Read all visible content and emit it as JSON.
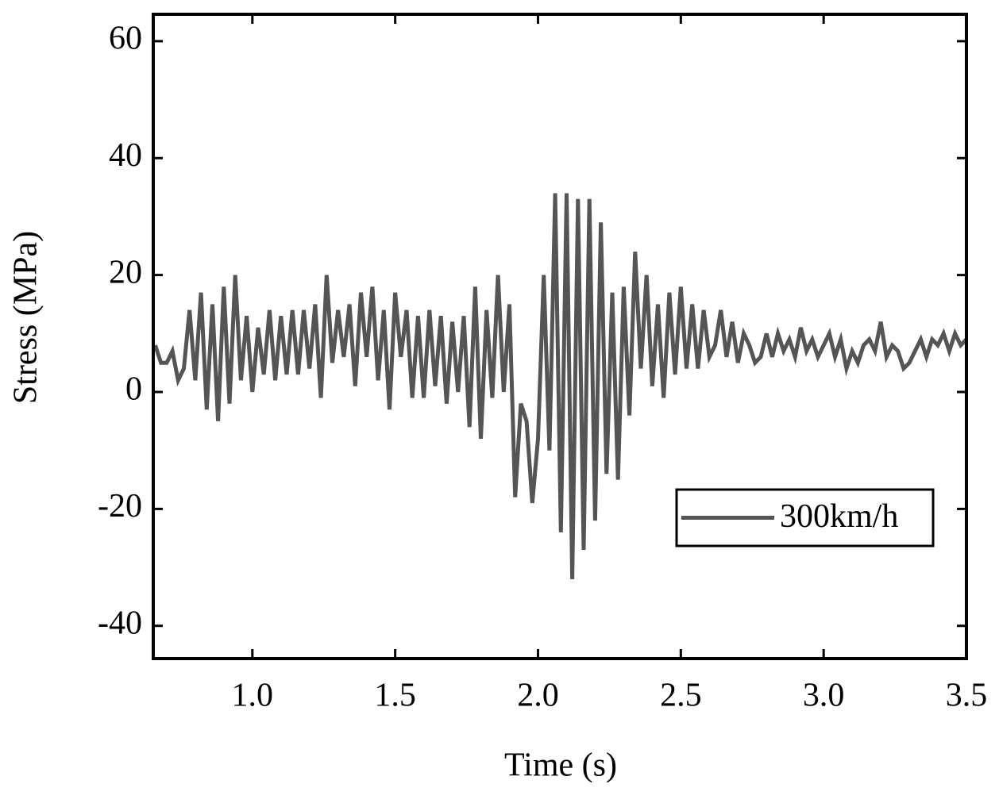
{
  "chart_data": {
    "type": "line",
    "xlabel": "Time (s)",
    "ylabel": "Stress (MPa)",
    "x": [
      0.66,
      0.68,
      0.7,
      0.72,
      0.74,
      0.76,
      0.78,
      0.8,
      0.82,
      0.84,
      0.86,
      0.88,
      0.9,
      0.92,
      0.94,
      0.96,
      0.98,
      1.0,
      1.02,
      1.04,
      1.06,
      1.08,
      1.1,
      1.12,
      1.14,
      1.16,
      1.18,
      1.2,
      1.22,
      1.24,
      1.26,
      1.28,
      1.3,
      1.32,
      1.34,
      1.36,
      1.38,
      1.4,
      1.42,
      1.44,
      1.46,
      1.48,
      1.5,
      1.52,
      1.54,
      1.56,
      1.58,
      1.6,
      1.62,
      1.64,
      1.66,
      1.68,
      1.7,
      1.72,
      1.74,
      1.76,
      1.78,
      1.8,
      1.82,
      1.84,
      1.86,
      1.88,
      1.9,
      1.92,
      1.94,
      1.96,
      1.98,
      2.0,
      2.02,
      2.04,
      2.06,
      2.08,
      2.1,
      2.12,
      2.14,
      2.16,
      2.18,
      2.2,
      2.22,
      2.24,
      2.26,
      2.28,
      2.3,
      2.32,
      2.34,
      2.36,
      2.38,
      2.4,
      2.42,
      2.44,
      2.46,
      2.48,
      2.5,
      2.52,
      2.54,
      2.56,
      2.58,
      2.6,
      2.62,
      2.64,
      2.66,
      2.68,
      2.7,
      2.72,
      2.74,
      2.76,
      2.78,
      2.8,
      2.82,
      2.84,
      2.86,
      2.88,
      2.9,
      2.92,
      2.94,
      2.96,
      2.98,
      3.0,
      3.02,
      3.04,
      3.06,
      3.08,
      3.1,
      3.12,
      3.14,
      3.16,
      3.18,
      3.2,
      3.22,
      3.24,
      3.26,
      3.28,
      3.3,
      3.32,
      3.34,
      3.36,
      3.38,
      3.4,
      3.42,
      3.44,
      3.46,
      3.48,
      3.5
    ],
    "series": [
      {
        "name": "300km/h",
        "color": "#555555",
        "values": [
          8,
          5,
          5,
          7,
          2,
          4,
          14,
          2,
          17,
          -3,
          15,
          -5,
          18,
          -2,
          20,
          2,
          13,
          0,
          11,
          3,
          14,
          2,
          13,
          3,
          14,
          3,
          14,
          4,
          15,
          -1,
          20,
          5,
          14,
          6,
          15,
          1,
          17,
          6,
          18,
          2,
          14,
          -3,
          17,
          6,
          14,
          -1,
          13,
          -1,
          14,
          1,
          13,
          -2,
          12,
          0,
          13,
          -6,
          18,
          -8,
          14,
          -1,
          20,
          0,
          15,
          -18,
          -2,
          -5,
          -19,
          -8,
          20,
          -10,
          34,
          -24,
          34,
          -32,
          33,
          -27,
          33,
          -22,
          29,
          -14,
          17,
          -15,
          18,
          -4,
          24,
          4,
          20,
          1,
          15,
          -1,
          17,
          3,
          18,
          4,
          15,
          4,
          14,
          6,
          8,
          14,
          6,
          12,
          5,
          10,
          8,
          5,
          6,
          10,
          6,
          10,
          7,
          9,
          6,
          11,
          7,
          9,
          6,
          8,
          10,
          6,
          9,
          4,
          7,
          5,
          8,
          9,
          7,
          12,
          6,
          8,
          7,
          4,
          5,
          7,
          9,
          6,
          9,
          8,
          10,
          7,
          10,
          8,
          9
        ]
      }
    ],
    "xlim": [
      0.653,
      3.5
    ],
    "xticks": [
      {
        "value": 1,
        "label": "1.0"
      },
      {
        "value": 1.5,
        "label": "1.5"
      },
      {
        "value": 2,
        "label": "2.0"
      },
      {
        "value": 2.5,
        "label": "2.5"
      },
      {
        "value": 3,
        "label": "3.0"
      },
      {
        "value": 3.5,
        "label": "3.5"
      }
    ],
    "ylim": [
      -45.6,
      64.6
    ],
    "yticks": [
      -40,
      -20,
      0,
      20,
      40,
      60
    ],
    "grid": false,
    "legend": "lower right"
  }
}
